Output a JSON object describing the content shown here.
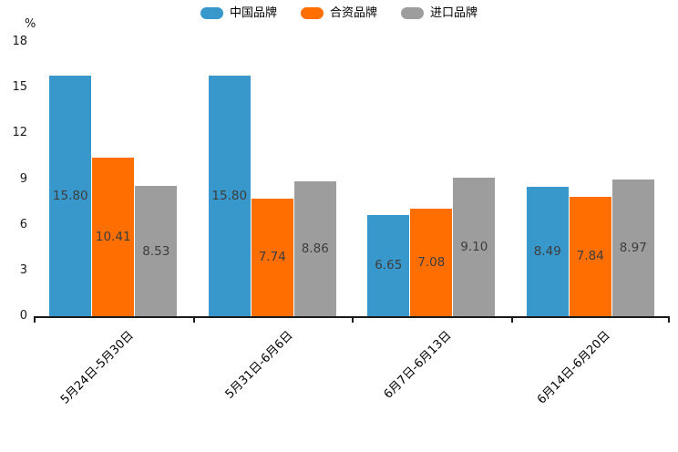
{
  "chart_data": {
    "type": "bar",
    "title": "",
    "ylabel": "%",
    "ylim": [
      0,
      18
    ],
    "yticks": [
      0,
      3,
      6,
      9,
      12,
      15,
      18
    ],
    "grid": false,
    "legend_position": "top-center",
    "categories": [
      "5月24日-5月30日",
      "5月31日-6月6日",
      "6月7日-6月13日",
      "6月14日-6月20日"
    ],
    "series": [
      {
        "name": "中国品牌",
        "color": "#3898CB",
        "values": [
          15.8,
          15.8,
          6.65,
          8.49
        ]
      },
      {
        "name": "合资品牌",
        "color": "#FF6E00",
        "values": [
          10.41,
          7.74,
          7.08,
          7.84
        ]
      },
      {
        "name": "进口品牌",
        "color": "#9D9D9D",
        "values": [
          8.53,
          8.86,
          9.1,
          8.97
        ]
      }
    ],
    "value_label_color": "#3d3d3d",
    "axis_color": "#1a1a1a"
  }
}
